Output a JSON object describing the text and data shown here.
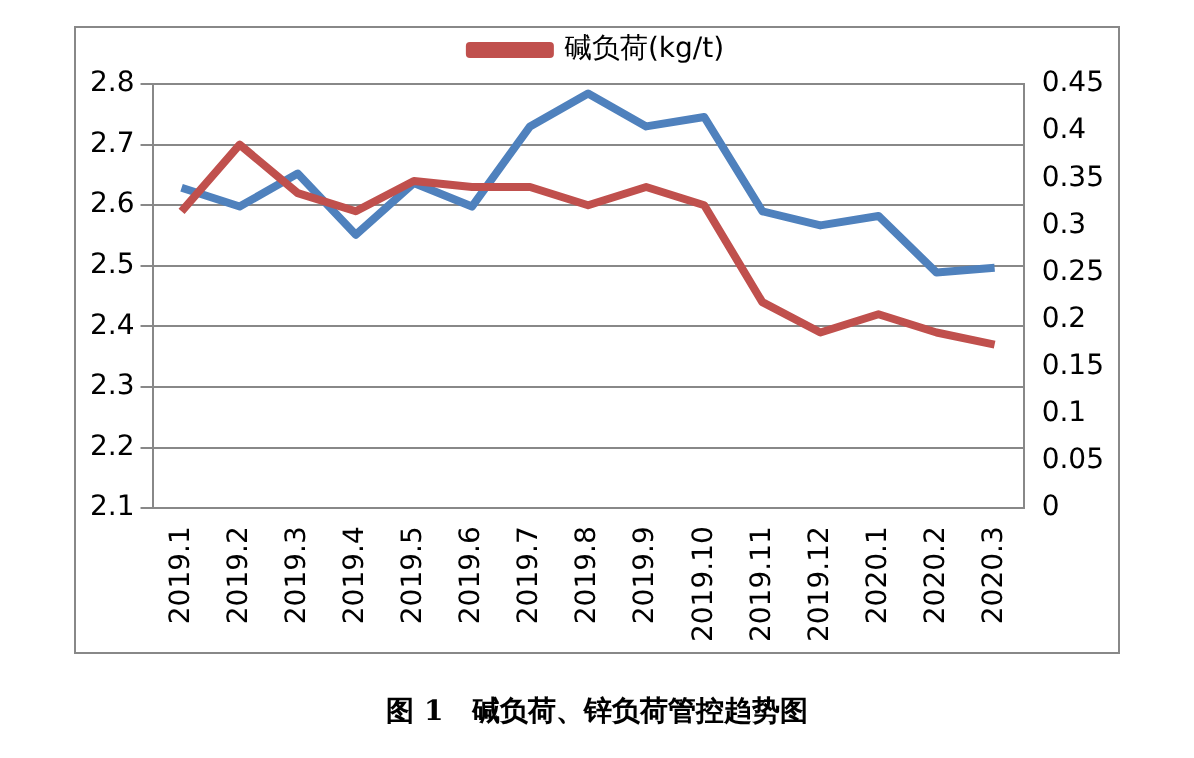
{
  "chart_data": {
    "type": "line",
    "title": "图 1　碱负荷、锌负荷管控趋势图",
    "categories": [
      "2019.1",
      "2019.2",
      "2019.3",
      "2019.4",
      "2019.5",
      "2019.6",
      "2019.7",
      "2019.8",
      "2019.9",
      "2019.10",
      "2019.11",
      "2019.12",
      "2020.1",
      "2020.2",
      "2020.3"
    ],
    "series": [
      {
        "name": "碱负荷(kg/t)",
        "color": "#c0504d",
        "values": [
          2.59,
          2.7,
          2.62,
          2.59,
          2.64,
          2.63,
          2.63,
          2.6,
          2.63,
          2.6,
          2.44,
          2.39,
          2.42,
          2.39,
          2.37
        ]
      },
      {
        "color": "#4f81bd",
        "axis": "y2",
        "values": [
          0.34,
          0.32,
          0.355,
          0.29,
          0.345,
          0.32,
          0.405,
          0.44,
          0.405,
          0.415,
          0.315,
          0.3,
          0.31,
          0.25,
          0.255
        ]
      }
    ],
    "ylim": [
      2.1,
      2.8
    ],
    "yticks": [
      2.1,
      2.2,
      2.3,
      2.4,
      2.5,
      2.6,
      2.7,
      2.8
    ],
    "y2lim": [
      0,
      0.45
    ],
    "y2ticks": [
      0,
      0.05,
      0.1,
      0.15,
      0.2,
      0.25,
      0.3,
      0.35,
      0.4,
      0.45
    ],
    "grid": "y",
    "legend": "top",
    "marker": "none",
    "line_style": "solid"
  }
}
